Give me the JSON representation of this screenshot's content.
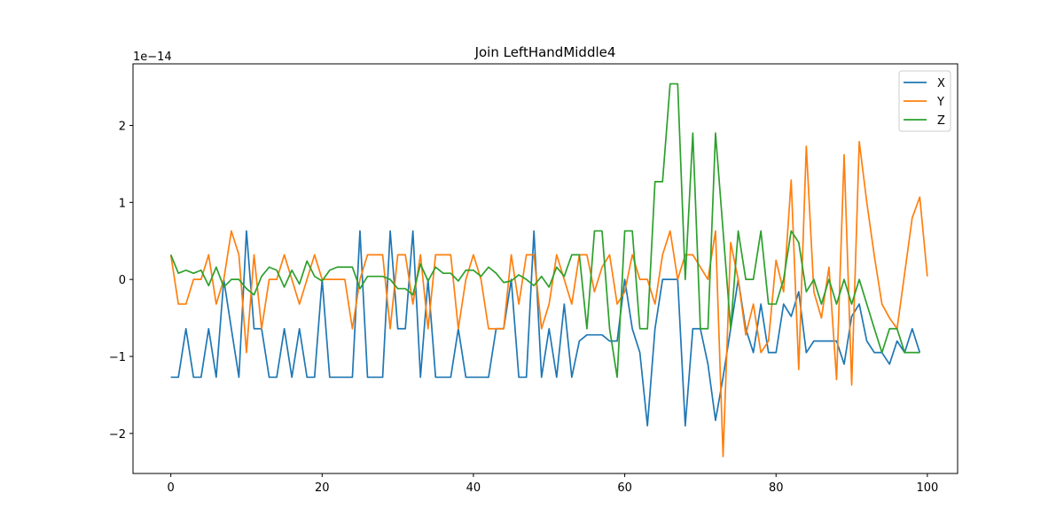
{
  "chart_data": {
    "type": "line",
    "title": "Join LeftHandMiddle4",
    "xlabel": "",
    "ylabel": "",
    "y_offset_label": "1e−14",
    "xlim": [
      -5.0,
      104.0
    ],
    "ylim": [
      -2.52,
      2.8
    ],
    "x_ticks": [
      0,
      20,
      40,
      60,
      80,
      100
    ],
    "y_ticks": [
      -2,
      -1,
      0,
      1,
      2
    ],
    "x_tick_labels": [
      "0",
      "20",
      "40",
      "60",
      "80",
      "100"
    ],
    "y_tick_labels": [
      "−2",
      "−1",
      "0",
      "1",
      "2"
    ],
    "legend_position": "top-right",
    "grid": false,
    "series": [
      {
        "name": "X",
        "color": "#1f77b4",
        "values": [
          -1.27,
          -1.27,
          -0.64,
          -1.27,
          -1.27,
          -0.64,
          -1.27,
          0.0,
          -0.64,
          -1.27,
          0.63,
          -0.64,
          -0.64,
          -1.27,
          -1.27,
          -0.64,
          -1.27,
          -0.64,
          -1.27,
          -1.27,
          0.0,
          -1.27,
          -1.27,
          -1.27,
          -1.27,
          0.63,
          -1.27,
          -1.27,
          -1.27,
          0.63,
          -0.64,
          -0.64,
          0.63,
          -1.27,
          0.0,
          -1.27,
          -1.27,
          -1.27,
          -0.64,
          -1.27,
          -1.27,
          -1.27,
          -1.27,
          -0.64,
          -0.64,
          0.0,
          -1.27,
          -1.27,
          0.63,
          -1.27,
          -0.64,
          -1.27,
          -0.32,
          -1.27,
          -0.8,
          -0.72,
          -0.72,
          -0.72,
          -0.8,
          -0.8,
          0.0,
          -0.64,
          -0.95,
          -1.9,
          -0.64,
          0.0,
          0.0,
          0.0,
          -1.9,
          -0.64,
          -0.64,
          -1.1,
          -1.83,
          -1.27,
          -0.64,
          0.0,
          -0.64,
          -0.95,
          -0.32,
          -0.95,
          -0.95,
          -0.32,
          -0.48,
          -0.16,
          -0.95,
          -0.8,
          -0.8,
          -0.8,
          -0.8,
          -1.1,
          -0.48,
          -0.32,
          -0.8,
          -0.95,
          -0.95,
          -1.1,
          -0.8,
          -0.95,
          -0.64,
          -0.95
        ]
      },
      {
        "name": "Y",
        "color": "#ff7f0e",
        "values": [
          0.32,
          -0.32,
          -0.32,
          0.0,
          0.0,
          0.32,
          -0.32,
          0.0,
          0.63,
          0.32,
          -0.95,
          0.32,
          -0.64,
          0.0,
          0.0,
          0.32,
          0.0,
          -0.32,
          0.0,
          0.32,
          0.0,
          0.0,
          0.0,
          0.0,
          -0.64,
          0.0,
          0.32,
          0.32,
          0.32,
          -0.64,
          0.32,
          0.32,
          -0.32,
          0.32,
          -0.64,
          0.32,
          0.32,
          0.32,
          -0.64,
          0.0,
          0.32,
          0.0,
          -0.64,
          -0.64,
          -0.64,
          0.32,
          -0.32,
          0.32,
          0.32,
          -0.64,
          -0.32,
          0.32,
          0.0,
          -0.32,
          0.32,
          0.32,
          -0.16,
          0.16,
          0.32,
          -0.32,
          -0.16,
          0.32,
          0.0,
          0.0,
          -0.32,
          0.32,
          0.63,
          0.0,
          0.32,
          0.32,
          0.16,
          0.0,
          0.63,
          -2.3,
          0.48,
          0.0,
          -0.72,
          -0.32,
          -0.95,
          -0.8,
          0.25,
          -0.16,
          1.29,
          -1.17,
          1.73,
          -0.16,
          -0.5,
          0.16,
          -1.3,
          1.62,
          -1.37,
          1.79,
          1.0,
          0.3,
          -0.32,
          -0.5,
          -0.64,
          0.08,
          0.8,
          1.07,
          0.04
        ]
      },
      {
        "name": "Z",
        "color": "#2ca02c",
        "values": [
          0.32,
          0.08,
          0.12,
          0.08,
          0.12,
          -0.08,
          0.16,
          -0.1,
          0.0,
          0.0,
          -0.12,
          -0.2,
          0.04,
          0.16,
          0.12,
          -0.1,
          0.12,
          -0.06,
          0.24,
          0.04,
          -0.02,
          0.12,
          0.16,
          0.16,
          0.16,
          -0.12,
          0.04,
          0.04,
          0.04,
          0.0,
          -0.12,
          -0.12,
          -0.2,
          0.2,
          -0.02,
          0.16,
          0.08,
          0.08,
          -0.02,
          0.12,
          0.12,
          0.04,
          0.16,
          0.08,
          -0.04,
          -0.02,
          0.06,
          0.0,
          -0.08,
          0.04,
          -0.1,
          0.16,
          0.04,
          0.32,
          0.32,
          -0.64,
          0.63,
          0.63,
          -0.64,
          -1.27,
          0.63,
          0.63,
          -0.64,
          -0.64,
          1.27,
          1.27,
          2.54,
          2.54,
          0.0,
          1.9,
          -0.64,
          -0.64,
          1.9,
          0.63,
          -0.64,
          0.63,
          0.0,
          0.0,
          0.63,
          -0.32,
          -0.32,
          0.0,
          0.63,
          0.48,
          -0.16,
          0.0,
          -0.32,
          0.0,
          -0.32,
          0.0,
          -0.32,
          0.0,
          -0.32,
          -0.64,
          -0.95,
          -0.64,
          -0.64,
          -0.95,
          -0.95,
          -0.95
        ]
      }
    ]
  }
}
